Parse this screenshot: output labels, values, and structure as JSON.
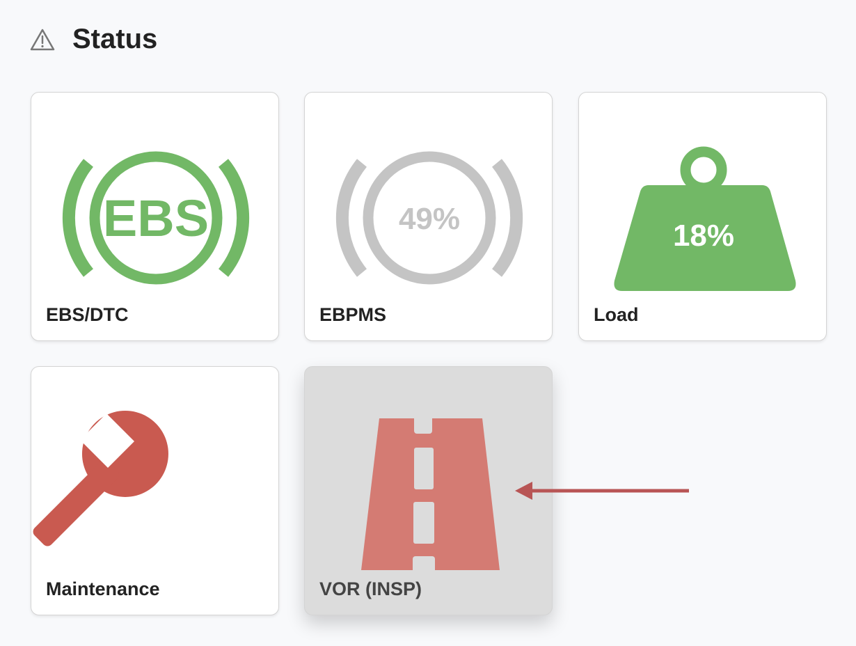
{
  "header": {
    "title": "Status",
    "icon": "warning-triangle-icon"
  },
  "colors": {
    "ok": "#72b866",
    "inactive": "#c4c4c4",
    "alert": "#c95a50",
    "road": "#d47b73",
    "arrow": "#b85555"
  },
  "cards": [
    {
      "label": "EBS/DTC",
      "icon_text": "EBS",
      "status": "ok"
    },
    {
      "label": "EBPMS",
      "icon_text": "49%",
      "status": "inactive"
    },
    {
      "label": "Load",
      "icon_text": "18%",
      "status": "ok"
    },
    {
      "label": "Maintenance",
      "status": "alert"
    },
    {
      "label": "VOR (INSP)",
      "status": "alert",
      "selected": true
    }
  ]
}
